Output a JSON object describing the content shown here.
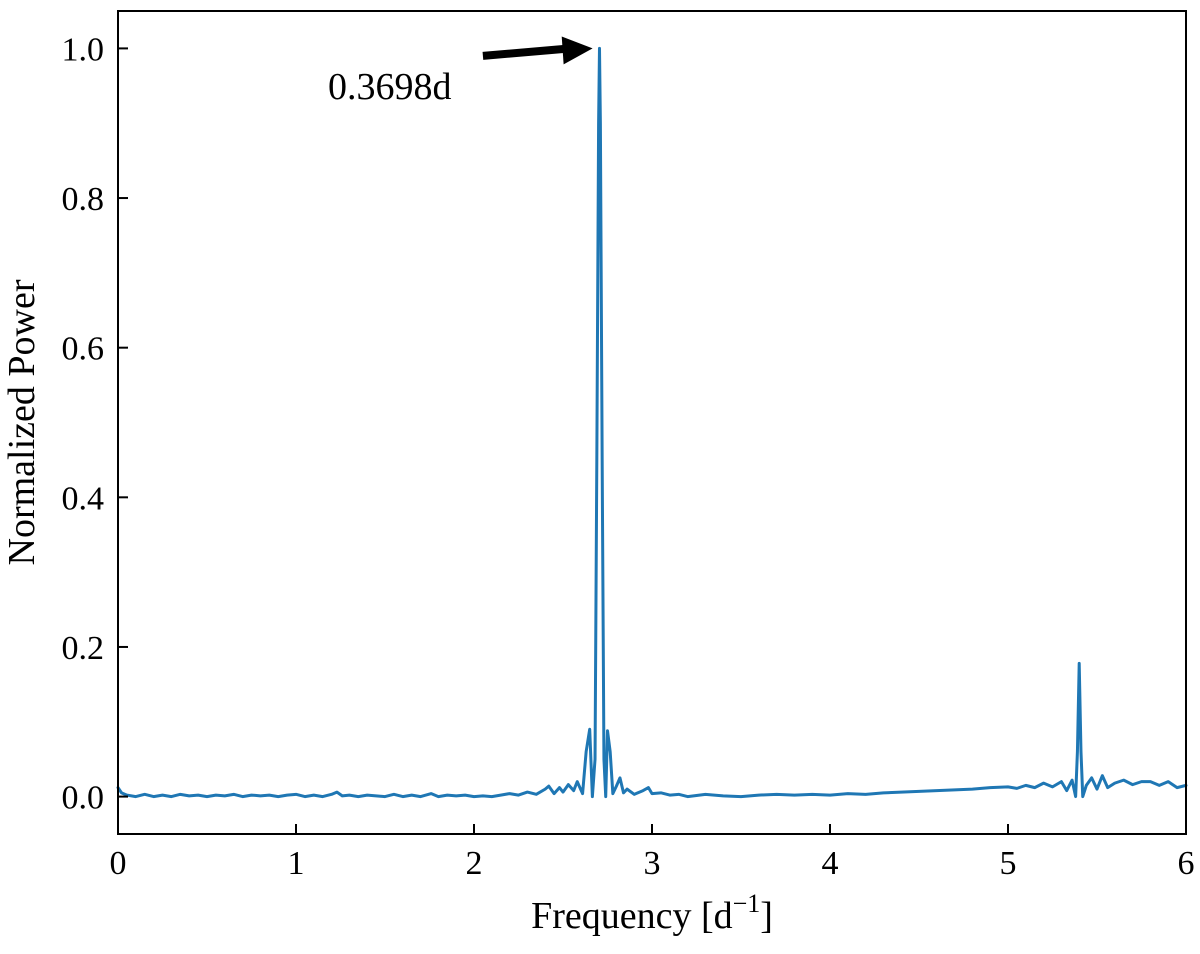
{
  "chart_data": {
    "type": "line",
    "title": "",
    "xlabel": "Frequency [d",
    "xlabel_superscript": "−1",
    "xlabel_suffix": "]",
    "ylabel": "Normalized Power",
    "xlim": [
      0,
      6
    ],
    "ylim": [
      -0.05,
      1.05
    ],
    "xticks": [
      0,
      1,
      2,
      3,
      4,
      5,
      6
    ],
    "xtick_labels": [
      "0",
      "1",
      "2",
      "3",
      "4",
      "5",
      "6"
    ],
    "yticks": [
      0.0,
      0.2,
      0.4,
      0.6,
      0.8,
      1.0
    ],
    "ytick_labels": [
      "0.0",
      "0.2",
      "0.4",
      "0.6",
      "0.8",
      "1.0"
    ],
    "grid": false,
    "series": [
      {
        "color": "#1f77b4",
        "x": [
          0.0,
          0.02,
          0.05,
          0.1,
          0.15,
          0.2,
          0.25,
          0.3,
          0.35,
          0.4,
          0.45,
          0.5,
          0.55,
          0.6,
          0.65,
          0.7,
          0.75,
          0.8,
          0.85,
          0.9,
          0.95,
          1.0,
          1.05,
          1.1,
          1.15,
          1.2,
          1.23,
          1.26,
          1.3,
          1.35,
          1.4,
          1.45,
          1.5,
          1.55,
          1.6,
          1.65,
          1.7,
          1.76,
          1.8,
          1.85,
          1.9,
          1.95,
          2.0,
          2.05,
          2.1,
          2.15,
          2.2,
          2.25,
          2.3,
          2.35,
          2.4,
          2.42,
          2.45,
          2.48,
          2.5,
          2.53,
          2.56,
          2.58,
          2.61,
          2.63,
          2.65,
          2.665,
          2.68,
          2.69,
          2.7,
          2.705,
          2.71,
          2.72,
          2.73,
          2.74,
          2.75,
          2.765,
          2.78,
          2.8,
          2.82,
          2.84,
          2.86,
          2.9,
          2.95,
          2.98,
          3.0,
          3.05,
          3.1,
          3.15,
          3.2,
          3.3,
          3.4,
          3.5,
          3.6,
          3.7,
          3.8,
          3.9,
          4.0,
          4.1,
          4.2,
          4.3,
          4.4,
          4.5,
          4.6,
          4.7,
          4.8,
          4.9,
          5.0,
          5.05,
          5.1,
          5.15,
          5.2,
          5.25,
          5.3,
          5.33,
          5.36,
          5.38,
          5.39,
          5.4,
          5.41,
          5.42,
          5.44,
          5.47,
          5.5,
          5.53,
          5.56,
          5.6,
          5.65,
          5.7,
          5.75,
          5.8,
          5.85,
          5.9,
          5.95,
          6.0
        ],
        "y": [
          0.012,
          0.005,
          0.002,
          0.0,
          0.003,
          0.0,
          0.002,
          0.0,
          0.003,
          0.001,
          0.002,
          0.0,
          0.002,
          0.001,
          0.003,
          0.0,
          0.002,
          0.001,
          0.002,
          0.0,
          0.002,
          0.003,
          0.0,
          0.002,
          0.0,
          0.003,
          0.006,
          0.001,
          0.002,
          0.0,
          0.002,
          0.001,
          0.0,
          0.003,
          0.0,
          0.002,
          0.0,
          0.004,
          0.0,
          0.002,
          0.001,
          0.002,
          0.0,
          0.001,
          0.0,
          0.002,
          0.004,
          0.002,
          0.006,
          0.003,
          0.01,
          0.014,
          0.004,
          0.012,
          0.006,
          0.016,
          0.008,
          0.02,
          0.004,
          0.06,
          0.09,
          0.0,
          0.05,
          0.45,
          0.9,
          1.0,
          0.9,
          0.45,
          0.05,
          0.0,
          0.088,
          0.06,
          0.004,
          0.014,
          0.025,
          0.005,
          0.01,
          0.003,
          0.008,
          0.012,
          0.004,
          0.005,
          0.002,
          0.003,
          0.0,
          0.003,
          0.001,
          0.0,
          0.002,
          0.003,
          0.002,
          0.003,
          0.002,
          0.004,
          0.003,
          0.005,
          0.006,
          0.007,
          0.008,
          0.009,
          0.01,
          0.012,
          0.013,
          0.011,
          0.015,
          0.012,
          0.018,
          0.013,
          0.02,
          0.008,
          0.022,
          0.0,
          0.06,
          0.178,
          0.06,
          0.0,
          0.015,
          0.025,
          0.01,
          0.028,
          0.012,
          0.018,
          0.022,
          0.016,
          0.02,
          0.02,
          0.015,
          0.02,
          0.012,
          0.015
        ]
      }
    ],
    "annotation": {
      "text": "0.3698d",
      "arrow_from": [
        2.05,
        0.99
      ],
      "arrow_to": [
        2.7,
        1.0
      ],
      "text_at": [
        1.18,
        0.97
      ]
    }
  }
}
